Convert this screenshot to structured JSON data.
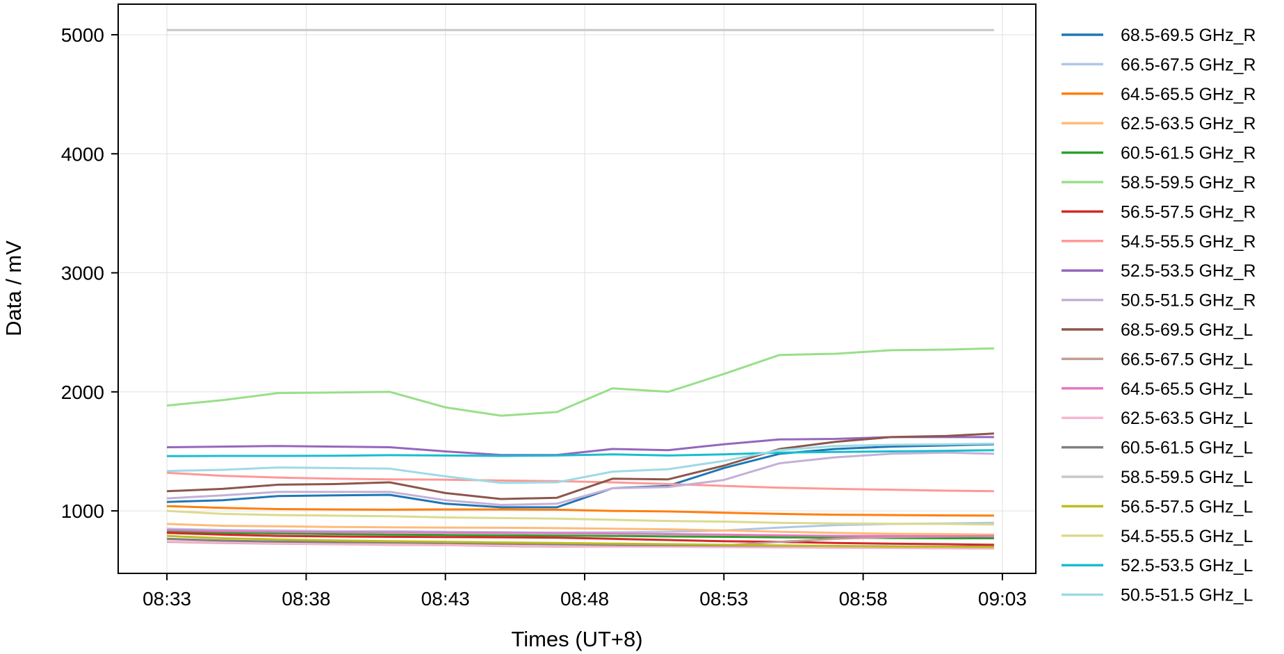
{
  "chart_data": {
    "type": "line",
    "title": "",
    "xlabel": "Times (UT+8)",
    "ylabel": "Data / mV",
    "x_unit": "minutes after 08:33",
    "x": [
      0,
      2,
      4,
      6,
      8,
      10,
      12,
      14,
      16,
      18,
      20,
      22,
      24,
      26,
      28,
      29.7
    ],
    "xlim": [
      -1.75,
      31.2
    ],
    "ylim": [
      475,
      5257
    ],
    "xticks": [
      0,
      5,
      10,
      15,
      20,
      25,
      30
    ],
    "xtick_labels": [
      "08:33",
      "08:38",
      "08:43",
      "08:48",
      "08:53",
      "08:58",
      "09:03"
    ],
    "yticks": [
      1000,
      2000,
      3000,
      4000,
      5000
    ],
    "ytick_labels": [
      "1000",
      "2000",
      "3000",
      "4000",
      "5000"
    ],
    "grid": true,
    "legend_placement": "outside-right",
    "series": [
      {
        "name": "68.5-69.5 GHz_R",
        "color": "#1f77b4",
        "values": [
          1075,
          1090,
          1125,
          1130,
          1135,
          1060,
          1030,
          1030,
          1190,
          1210,
          1360,
          1480,
          1520,
          1540,
          1550,
          1560
        ]
      },
      {
        "name": "66.5-67.5 GHz_R",
        "color": "#aec7e8",
        "values": [
          850,
          840,
          835,
          830,
          830,
          825,
          822,
          818,
          820,
          825,
          835,
          860,
          880,
          890,
          895,
          900
        ]
      },
      {
        "name": "64.5-65.5 GHz_R",
        "color": "#ff7f0e",
        "values": [
          1040,
          1025,
          1015,
          1012,
          1010,
          1012,
          1012,
          1010,
          1000,
          995,
          985,
          975,
          968,
          965,
          962,
          960
        ]
      },
      {
        "name": "62.5-63.5 GHz_R",
        "color": "#ffbb78",
        "values": [
          890,
          875,
          870,
          865,
          862,
          860,
          858,
          855,
          850,
          845,
          835,
          825,
          815,
          808,
          805,
          800
        ]
      },
      {
        "name": "60.5-61.5 GHz_R",
        "color": "#2ca02c",
        "values": [
          830,
          815,
          810,
          805,
          800,
          798,
          795,
          792,
          790,
          785,
          782,
          778,
          775,
          772,
          770,
          770
        ]
      },
      {
        "name": "58.5-59.5 GHz_R",
        "color": "#98df8a",
        "values": [
          1885,
          1930,
          1990,
          1995,
          2000,
          1870,
          1800,
          1830,
          2030,
          2000,
          2150,
          2310,
          2320,
          2350,
          2355,
          2365
        ]
      },
      {
        "name": "56.5-57.5 GHz_R",
        "color": "#d62728",
        "values": [
          815,
          800,
          790,
          785,
          782,
          780,
          778,
          775,
          765,
          755,
          745,
          740,
          730,
          725,
          720,
          715
        ]
      },
      {
        "name": "54.5-55.5 GHz_R",
        "color": "#ff9896",
        "values": [
          1320,
          1295,
          1280,
          1270,
          1265,
          1262,
          1255,
          1250,
          1240,
          1225,
          1210,
          1195,
          1185,
          1178,
          1170,
          1165
        ]
      },
      {
        "name": "52.5-53.5 GHz_R",
        "color": "#9467bd",
        "values": [
          1535,
          1540,
          1545,
          1540,
          1535,
          1500,
          1470,
          1470,
          1520,
          1510,
          1560,
          1600,
          1605,
          1620,
          1620,
          1620
        ]
      },
      {
        "name": "50.5-51.5 GHz_R",
        "color": "#c5b0d5",
        "values": [
          1105,
          1130,
          1160,
          1160,
          1160,
          1090,
          1050,
          1060,
          1190,
          1200,
          1260,
          1400,
          1450,
          1480,
          1490,
          1480
        ]
      },
      {
        "name": "68.5-69.5 GHz_L",
        "color": "#8c564b",
        "values": [
          1165,
          1185,
          1220,
          1225,
          1240,
          1150,
          1100,
          1110,
          1270,
          1265,
          1380,
          1520,
          1580,
          1620,
          1630,
          1650
        ]
      },
      {
        "name": "66.5-67.5 GHz_L",
        "color": "#c49c94",
        "values": [
          740,
          730,
          725,
          720,
          715,
          712,
          705,
          700,
          700,
          702,
          710,
          740,
          765,
          780,
          785,
          790
        ]
      },
      {
        "name": "64.5-65.5 GHz_L",
        "color": "#e377c2",
        "values": [
          840,
          830,
          825,
          822,
          820,
          818,
          815,
          812,
          810,
          805,
          800,
          795,
          790,
          790,
          788,
          788
        ]
      },
      {
        "name": "62.5-63.5 GHz_L",
        "color": "#f7b6d2",
        "values": [
          745,
          735,
          728,
          722,
          718,
          712,
          708,
          702,
          700,
          698,
          695,
          692,
          690,
          688,
          685,
          683
        ]
      },
      {
        "name": "60.5-61.5 GHz_L",
        "color": "#7f7f7f",
        "values": [
          765,
          750,
          742,
          738,
          735,
          730,
          725,
          720,
          715,
          712,
          710,
          708,
          705,
          702,
          700,
          700
        ]
      },
      {
        "name": "58.5-59.5 GHz_L",
        "color": "#c7c7c7",
        "values": [
          5040,
          5040,
          5040,
          5040,
          5040,
          5040,
          5040,
          5040,
          5040,
          5040,
          5040,
          5040,
          5040,
          5040,
          5040,
          5040
        ]
      },
      {
        "name": "56.5-57.5 GHz_L",
        "color": "#bcbd22",
        "values": [
          790,
          770,
          760,
          752,
          745,
          740,
          735,
          730,
          725,
          720,
          715,
          710,
          705,
          700,
          698,
          695
        ]
      },
      {
        "name": "54.5-55.5 GHz_L",
        "color": "#dbdb8d",
        "values": [
          1000,
          975,
          965,
          960,
          955,
          945,
          940,
          935,
          925,
          915,
          910,
          900,
          895,
          892,
          890,
          885
        ]
      },
      {
        "name": "52.5-53.5 GHz_L",
        "color": "#17becf",
        "values": [
          1460,
          1462,
          1462,
          1463,
          1468,
          1465,
          1462,
          1465,
          1475,
          1465,
          1475,
          1490,
          1495,
          1500,
          1505,
          1510
        ]
      },
      {
        "name": "50.5-51.5 GHz_L",
        "color": "#9edae5",
        "values": [
          1335,
          1345,
          1365,
          1360,
          1355,
          1290,
          1235,
          1240,
          1330,
          1350,
          1420,
          1510,
          1545,
          1555,
          1560,
          1565
        ]
      }
    ]
  }
}
